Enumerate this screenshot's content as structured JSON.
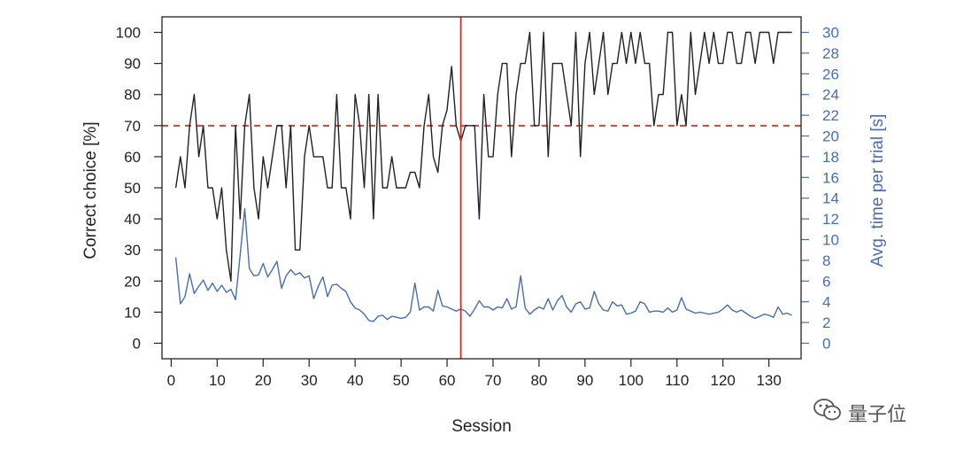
{
  "chart_data": {
    "type": "line",
    "xlabel": "Session",
    "ylabel_left": "Correct choice [%]",
    "ylabel_right": "Avg. time per trial [s]",
    "xlim": [
      -2,
      137
    ],
    "x_ticks": [
      0,
      10,
      20,
      30,
      40,
      50,
      60,
      70,
      80,
      90,
      100,
      110,
      120,
      130
    ],
    "ylim_left": [
      -5,
      105
    ],
    "y_ticks_left": [
      0,
      10,
      20,
      30,
      40,
      50,
      60,
      70,
      80,
      90,
      100
    ],
    "ylim_right": [
      -1.5,
      31.5
    ],
    "y_ticks_right": [
      0,
      2,
      4,
      6,
      8,
      10,
      12,
      14,
      16,
      18,
      20,
      22,
      24,
      26,
      28,
      30
    ],
    "reference_line_y": 70,
    "vertical_marker_x": 63,
    "colors": {
      "correct": "#222222",
      "time": "#4a6ea8",
      "reference": "#d0453a",
      "marker": "#c9302c",
      "right_axis": "#4a6ea8"
    },
    "series": [
      {
        "name": "",
        "axis": "left",
        "x": [
          1,
          2,
          3,
          4,
          5,
          6,
          7,
          8,
          9,
          10,
          11,
          12,
          13,
          14,
          15,
          16,
          17,
          18,
          19,
          20,
          21,
          22,
          23,
          24,
          25,
          26,
          27,
          28,
          29,
          30,
          31,
          32,
          33,
          34,
          35,
          36,
          37,
          38,
          39,
          40,
          41,
          42,
          43,
          44,
          45,
          46,
          47,
          48,
          49,
          50,
          51,
          52,
          53,
          54,
          55,
          56,
          57,
          58,
          59,
          60,
          61,
          62,
          63,
          64,
          65,
          66,
          67,
          68,
          69,
          70,
          71,
          72,
          73,
          74,
          75,
          76,
          77,
          78,
          79,
          80,
          81,
          82,
          83,
          84,
          85,
          86,
          87,
          88,
          89,
          90,
          91,
          92,
          93,
          94,
          95,
          96,
          97,
          98,
          99,
          100,
          101,
          102,
          103,
          104,
          105,
          106,
          107,
          108,
          109,
          110,
          111,
          112,
          113,
          114,
          115,
          116,
          117,
          118,
          119,
          120,
          121,
          122,
          123,
          124,
          125,
          126,
          127,
          128,
          129,
          130,
          131,
          132,
          133,
          134,
          135
        ],
        "values": [
          50,
          60,
          50,
          70,
          80,
          60,
          70,
          50,
          50,
          40,
          50,
          30,
          20,
          70,
          40,
          70,
          80,
          50,
          40,
          60,
          50,
          60,
          70,
          70,
          50,
          70,
          30,
          30,
          60,
          70,
          60,
          60,
          60,
          50,
          50,
          80,
          50,
          50,
          40,
          80,
          70,
          50,
          80,
          40,
          80,
          50,
          50,
          60,
          50,
          50,
          50,
          55,
          55,
          50,
          70,
          80,
          60,
          55,
          70,
          75,
          89,
          70,
          65,
          70,
          70,
          70,
          40,
          80,
          60,
          60,
          80,
          90,
          90,
          60,
          80,
          90,
          90,
          100,
          70,
          70,
          100,
          60,
          90,
          90,
          90,
          80,
          70,
          100,
          60,
          90,
          100,
          80,
          90,
          100,
          80,
          90,
          90,
          100,
          90,
          100,
          90,
          100,
          90,
          90,
          70,
          80,
          80,
          100,
          100,
          70,
          80,
          70,
          100,
          80,
          90,
          100,
          90,
          100,
          90,
          90,
          100,
          100,
          90,
          90,
          100,
          100,
          90,
          100,
          100,
          100,
          90,
          100,
          100,
          100,
          100
        ]
      },
      {
        "name": "",
        "axis": "right",
        "x": [
          1,
          2,
          3,
          4,
          5,
          6,
          7,
          8,
          9,
          10,
          11,
          12,
          13,
          14,
          15,
          16,
          17,
          18,
          19,
          20,
          21,
          22,
          23,
          24,
          25,
          26,
          27,
          28,
          29,
          30,
          31,
          32,
          33,
          34,
          35,
          36,
          37,
          38,
          39,
          40,
          41,
          42,
          43,
          44,
          45,
          46,
          47,
          48,
          49,
          50,
          51,
          52,
          53,
          54,
          55,
          56,
          57,
          58,
          59,
          60,
          61,
          62,
          63,
          64,
          65,
          66,
          67,
          68,
          69,
          70,
          71,
          72,
          73,
          74,
          75,
          76,
          77,
          78,
          79,
          80,
          81,
          82,
          83,
          84,
          85,
          86,
          87,
          88,
          89,
          90,
          91,
          92,
          93,
          94,
          95,
          96,
          97,
          98,
          99,
          100,
          101,
          102,
          103,
          104,
          105,
          106,
          107,
          108,
          109,
          110,
          111,
          112,
          113,
          114,
          115,
          116,
          117,
          118,
          119,
          120,
          121,
          122,
          123,
          124,
          125,
          126,
          127,
          128,
          129,
          130,
          131,
          132,
          133,
          134,
          135
        ],
        "values": [
          8.3,
          3.8,
          4.5,
          6.7,
          4.8,
          5.5,
          6.1,
          5.1,
          5.8,
          5.0,
          5.6,
          4.9,
          5.2,
          4.2,
          8.5,
          13.0,
          7.2,
          6.5,
          6.6,
          7.7,
          6.4,
          7.1,
          7.9,
          5.3,
          6.5,
          7.1,
          6.6,
          6.8,
          6.3,
          6.5,
          4.3,
          5.5,
          6.4,
          4.5,
          5.6,
          5.7,
          5.3,
          5.0,
          4.0,
          3.4,
          3.2,
          2.8,
          2.2,
          2.1,
          2.6,
          2.7,
          2.3,
          2.6,
          2.5,
          2.4,
          2.5,
          3.0,
          5.8,
          3.2,
          3.5,
          3.5,
          3.1,
          5.1,
          3.6,
          3.5,
          3.3,
          3.1,
          3.3,
          3.1,
          2.6,
          3.3,
          4.1,
          3.5,
          3.5,
          3.2,
          3.5,
          3.4,
          4.3,
          3.3,
          3.5,
          6.5,
          3.4,
          2.8,
          3.2,
          3.5,
          3.3,
          4.3,
          3.2,
          4.1,
          4.6,
          3.5,
          3.0,
          3.8,
          4.0,
          3.3,
          3.4,
          5.0,
          3.8,
          3.2,
          3.1,
          4.0,
          3.6,
          3.7,
          2.8,
          2.9,
          3.1,
          4.0,
          3.8,
          3.0,
          3.1,
          3.1,
          3.0,
          3.4,
          3.0,
          3.2,
          4.4,
          3.3,
          3.1,
          2.9,
          3.0,
          2.9,
          2.8,
          2.9,
          3.0,
          3.3,
          3.7,
          3.2,
          3.0,
          3.2,
          2.9,
          2.6,
          2.4,
          2.6,
          2.8,
          2.7,
          2.5,
          3.5,
          2.8,
          2.9,
          2.7
        ]
      }
    ]
  },
  "watermark": {
    "text": "量子位",
    "icon": "wechat-icon"
  }
}
